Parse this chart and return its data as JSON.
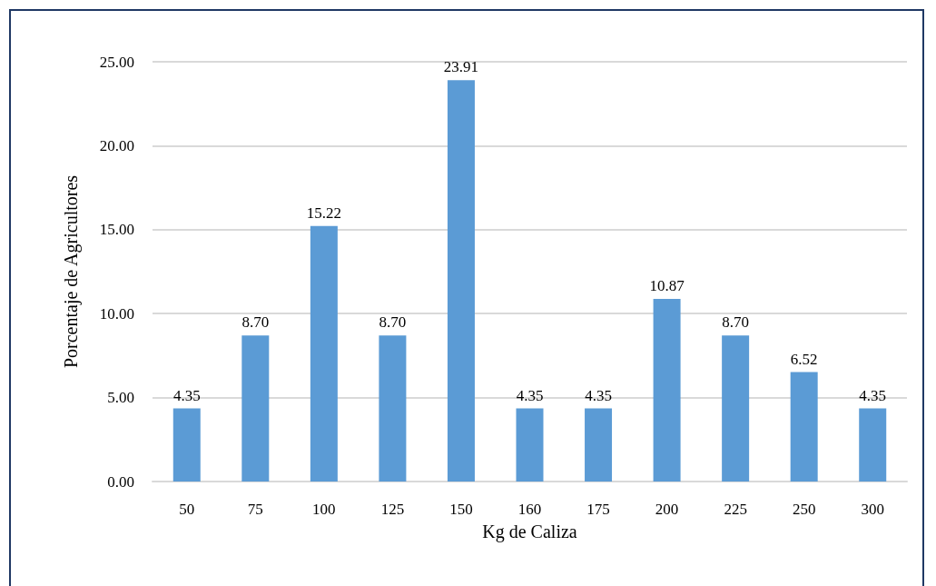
{
  "chart_data": {
    "type": "bar",
    "xlabel": "Kg de Caliza",
    "ylabel": "Porcentaje de Agricultores",
    "categories": [
      "50",
      "75",
      "100",
      "125",
      "150",
      "160",
      "175",
      "200",
      "225",
      "250",
      "300"
    ],
    "values": [
      4.35,
      8.7,
      15.22,
      8.7,
      23.91,
      4.35,
      4.35,
      10.87,
      8.7,
      6.52,
      4.35
    ],
    "value_labels": [
      "4.35",
      "8.70",
      "15.22",
      "8.70",
      "23.91",
      "4.35",
      "4.35",
      "10.87",
      "8.70",
      "6.52",
      "4.35"
    ],
    "color": "#5b9bd5",
    "ylim": [
      0,
      25
    ],
    "yticks": [
      {
        "value": 0,
        "label": "0.00"
      },
      {
        "value": 5,
        "label": "5.00"
      },
      {
        "value": 10,
        "label": "10.00"
      },
      {
        "value": 15,
        "label": "15.00"
      },
      {
        "value": 20,
        "label": "20.00"
      },
      {
        "value": 25,
        "label": "25.00"
      }
    ],
    "grid": "y"
  }
}
